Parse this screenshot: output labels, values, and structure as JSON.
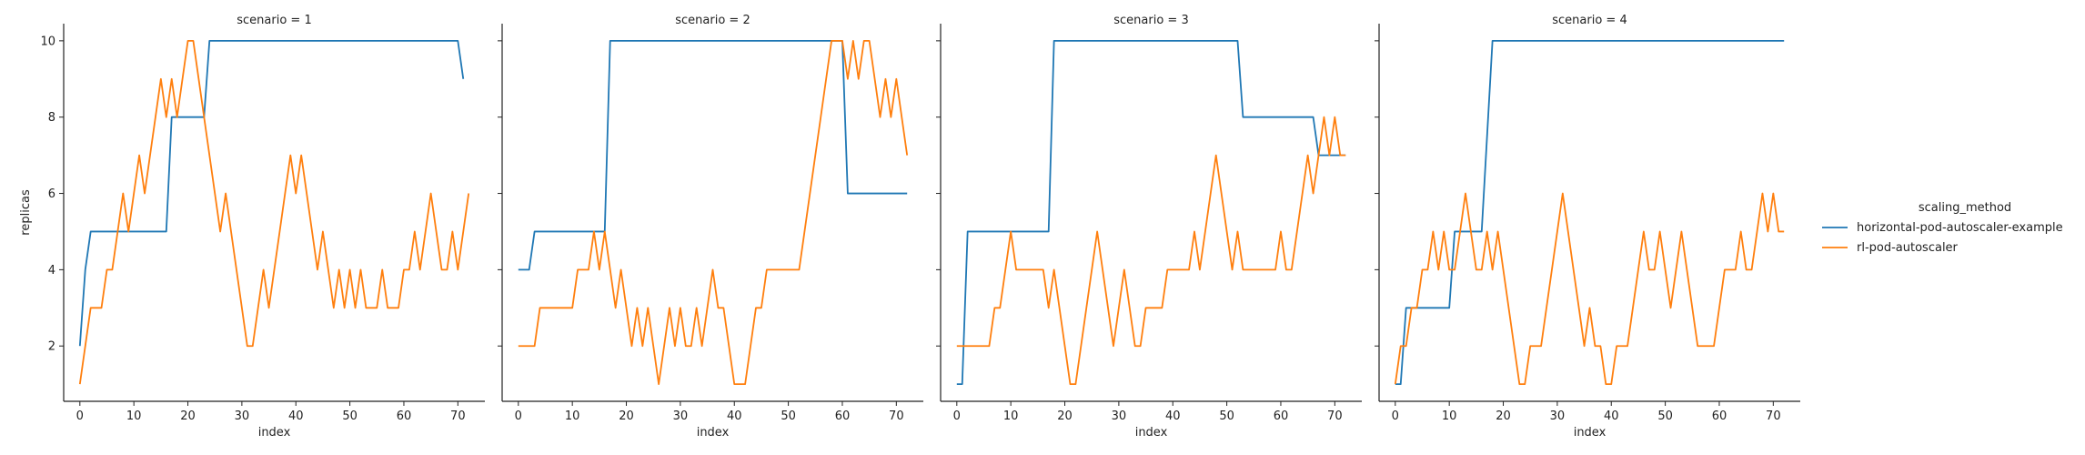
{
  "chart_data": {
    "type": "line",
    "facet_variable": "scenario",
    "xlabel": "index",
    "ylabel": "replicas",
    "xticks": [
      0,
      10,
      20,
      30,
      40,
      50,
      60,
      70
    ],
    "yticks": [
      2,
      4,
      6,
      8,
      10
    ],
    "xlim": [
      -3,
      75
    ],
    "ylim": [
      0.55,
      10.45
    ],
    "legend": {
      "title": "scaling_method",
      "placement": "right",
      "entries": [
        "horizontal-pod-autoscaler-example",
        "rl-pod-autoscaler"
      ]
    },
    "colors": {
      "horizontal-pod-autoscaler-example": "#1f77b4",
      "rl-pod-autoscaler": "#ff7f0e"
    },
    "panels": [
      {
        "title": "scenario = 1",
        "series": [
          {
            "name": "horizontal-pod-autoscaler-example",
            "x": [
              0,
              1,
              2,
              16,
              17,
              23,
              24,
              70,
              71
            ],
            "y": [
              2,
              4,
              5,
              5,
              8,
              8,
              10,
              10,
              9
            ]
          },
          {
            "name": "rl-pod-autoscaler",
            "x": [
              0,
              1,
              2,
              3,
              4,
              5,
              6,
              7,
              8,
              9,
              10,
              11,
              12,
              13,
              14,
              15,
              16,
              17,
              18,
              19,
              20,
              21,
              22,
              23,
              24,
              25,
              26,
              27,
              28,
              29,
              30,
              31,
              32,
              33,
              34,
              35,
              36,
              37,
              38,
              39,
              40,
              41,
              42,
              43,
              44,
              45,
              46,
              47,
              48,
              49,
              50,
              51,
              52,
              53,
              54,
              55,
              56,
              57,
              58,
              59,
              60,
              61,
              62,
              63,
              64,
              65,
              66,
              67,
              68,
              69,
              70,
              71,
              72
            ],
            "y": [
              1,
              2,
              3,
              3,
              3,
              4,
              4,
              5,
              6,
              5,
              6,
              7,
              6,
              7,
              8,
              9,
              8,
              9,
              8,
              9,
              10,
              10,
              9,
              8,
              7,
              6,
              5,
              6,
              5,
              4,
              3,
              2,
              2,
              3,
              4,
              3,
              4,
              5,
              6,
              7,
              6,
              7,
              6,
              5,
              4,
              5,
              4,
              3,
              4,
              3,
              4,
              3,
              4,
              3,
              3,
              3,
              4,
              3,
              3,
              3,
              4,
              4,
              5,
              4,
              5,
              6,
              5,
              4,
              4,
              5,
              4,
              5,
              6
            ]
          }
        ]
      },
      {
        "title": "scenario = 2",
        "series": [
          {
            "name": "horizontal-pod-autoscaler-example",
            "x": [
              0,
              2,
              3,
              16,
              17,
              60,
              61,
              72
            ],
            "y": [
              4,
              4,
              5,
              5,
              10,
              10,
              6,
              6
            ]
          },
          {
            "name": "rl-pod-autoscaler",
            "x": [
              0,
              1,
              2,
              3,
              4,
              5,
              6,
              7,
              8,
              9,
              10,
              11,
              12,
              13,
              14,
              15,
              16,
              17,
              18,
              19,
              20,
              21,
              22,
              23,
              24,
              25,
              26,
              27,
              28,
              29,
              30,
              31,
              32,
              33,
              34,
              35,
              36,
              37,
              38,
              39,
              40,
              41,
              42,
              43,
              44,
              45,
              46,
              47,
              48,
              49,
              50,
              51,
              52,
              53,
              54,
              55,
              56,
              57,
              58,
              59,
              60,
              61,
              62,
              63,
              64,
              65,
              66,
              67,
              68,
              69,
              70,
              71,
              72
            ],
            "y": [
              2,
              2,
              2,
              2,
              3,
              3,
              3,
              3,
              3,
              3,
              3,
              4,
              4,
              4,
              5,
              4,
              5,
              4,
              3,
              4,
              3,
              2,
              3,
              2,
              3,
              2,
              1,
              2,
              3,
              2,
              3,
              2,
              2,
              3,
              2,
              3,
              4,
              3,
              3,
              2,
              1,
              1,
              1,
              2,
              3,
              3,
              4,
              4,
              4,
              4,
              4,
              4,
              4,
              5,
              6,
              7,
              8,
              9,
              10,
              10,
              10,
              9,
              10,
              9,
              10,
              10,
              9,
              8,
              9,
              8,
              9,
              8,
              7
            ]
          }
        ]
      },
      {
        "title": "scenario = 3",
        "series": [
          {
            "name": "horizontal-pod-autoscaler-example",
            "x": [
              0,
              1,
              2,
              17,
              18,
              52,
              53,
              66,
              67,
              72
            ],
            "y": [
              1,
              1,
              5,
              5,
              10,
              10,
              8,
              8,
              7,
              7
            ]
          },
          {
            "name": "rl-pod-autoscaler",
            "x": [
              0,
              1,
              2,
              3,
              4,
              5,
              6,
              7,
              8,
              9,
              10,
              11,
              12,
              13,
              14,
              15,
              16,
              17,
              18,
              19,
              20,
              21,
              22,
              23,
              24,
              25,
              26,
              27,
              28,
              29,
              30,
              31,
              32,
              33,
              34,
              35,
              36,
              37,
              38,
              39,
              40,
              41,
              42,
              43,
              44,
              45,
              46,
              47,
              48,
              49,
              50,
              51,
              52,
              53,
              54,
              55,
              56,
              57,
              58,
              59,
              60,
              61,
              62,
              63,
              64,
              65,
              66,
              67,
              68,
              69,
              70,
              71,
              72
            ],
            "y": [
              2,
              2,
              2,
              2,
              2,
              2,
              2,
              3,
              3,
              4,
              5,
              4,
              4,
              4,
              4,
              4,
              4,
              3,
              4,
              3,
              2,
              1,
              1,
              2,
              3,
              4,
              5,
              4,
              3,
              2,
              3,
              4,
              3,
              2,
              2,
              3,
              3,
              3,
              3,
              4,
              4,
              4,
              4,
              4,
              5,
              4,
              5,
              6,
              7,
              6,
              5,
              4,
              5,
              4,
              4,
              4,
              4,
              4,
              4,
              4,
              5,
              4,
              4,
              5,
              6,
              7,
              6,
              7,
              8,
              7,
              8,
              7,
              7
            ]
          }
        ]
      },
      {
        "title": "scenario = 4",
        "series": [
          {
            "name": "horizontal-pod-autoscaler-example",
            "x": [
              0,
              1,
              2,
              10,
              11,
              16,
              18,
              72
            ],
            "y": [
              1,
              1,
              3,
              3,
              5,
              5,
              10,
              10
            ]
          },
          {
            "name": "rl-pod-autoscaler",
            "x": [
              0,
              1,
              2,
              3,
              4,
              5,
              6,
              7,
              8,
              9,
              10,
              11,
              12,
              13,
              14,
              15,
              16,
              17,
              18,
              19,
              20,
              21,
              22,
              23,
              24,
              25,
              26,
              27,
              28,
              29,
              30,
              31,
              32,
              33,
              34,
              35,
              36,
              37,
              38,
              39,
              40,
              41,
              42,
              43,
              44,
              45,
              46,
              47,
              48,
              49,
              50,
              51,
              52,
              53,
              54,
              55,
              56,
              57,
              58,
              59,
              60,
              61,
              62,
              63,
              64,
              65,
              66,
              67,
              68,
              69,
              70,
              71,
              72
            ],
            "y": [
              1,
              2,
              2,
              3,
              3,
              4,
              4,
              5,
              4,
              5,
              4,
              4,
              5,
              6,
              5,
              4,
              4,
              5,
              4,
              5,
              4,
              3,
              2,
              1,
              1,
              2,
              2,
              2,
              3,
              4,
              5,
              6,
              5,
              4,
              3,
              2,
              3,
              2,
              2,
              1,
              1,
              2,
              2,
              2,
              3,
              4,
              5,
              4,
              4,
              5,
              4,
              3,
              4,
              5,
              4,
              3,
              2,
              2,
              2,
              2,
              3,
              4,
              4,
              4,
              5,
              4,
              4,
              5,
              6,
              5,
              6,
              5,
              5
            ]
          }
        ]
      }
    ]
  }
}
